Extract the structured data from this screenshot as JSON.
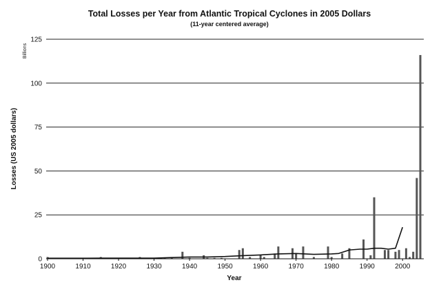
{
  "chart_data": {
    "type": "bar",
    "title": "Total Losses per Year from Atlantic Tropical Cyclones in 2005 Dollars",
    "subtitle": "(11-year centered average)",
    "xlabel": "Year",
    "ylabel": "Losses (US 2005 dollars)",
    "y_unit_label": "Billions",
    "xlim": [
      1900,
      2005
    ],
    "ylim": [
      0,
      125
    ],
    "x_ticks": [
      "1900",
      "1910",
      "1920",
      "1930",
      "1940",
      "1950",
      "1960",
      "1970",
      "1980",
      "1990",
      "2000"
    ],
    "y_ticks": [
      "0",
      "25",
      "50",
      "75",
      "100",
      "125"
    ],
    "grid": "horizontal",
    "bar_color": "#555555",
    "line_color": "#111111",
    "bars": {
      "x": [
        1900,
        1906,
        1909,
        1915,
        1919,
        1926,
        1928,
        1932,
        1933,
        1935,
        1938,
        1940,
        1944,
        1945,
        1947,
        1949,
        1954,
        1955,
        1957,
        1960,
        1961,
        1964,
        1965,
        1969,
        1970,
        1972,
        1975,
        1979,
        1980,
        1983,
        1985,
        1989,
        1991,
        1992,
        1995,
        1996,
        1998,
        1999,
        2001,
        2002,
        2003,
        2004,
        2005
      ],
      "values": [
        1,
        0.5,
        0.5,
        1,
        0.5,
        1,
        0.5,
        0.5,
        0.5,
        0.5,
        4,
        0.5,
        2,
        0.5,
        0.5,
        0.5,
        5,
        6,
        1,
        2,
        1,
        3,
        7,
        6,
        3,
        7,
        1,
        7,
        1,
        3,
        6,
        11,
        2,
        35,
        5,
        5,
        4,
        5,
        6,
        1,
        4,
        46,
        116
      ]
    },
    "series": [
      {
        "type": "line",
        "x": [
          1900,
          1905,
          1910,
          1915,
          1920,
          1925,
          1930,
          1935,
          1940,
          1945,
          1950,
          1955,
          1960,
          1965,
          1970,
          1975,
          1980,
          1982,
          1985,
          1988,
          1990,
          1992,
          1994,
          1996,
          1998,
          2000
        ],
        "values": [
          0.3,
          0.3,
          0.3,
          0.4,
          0.4,
          0.4,
          0.4,
          0.7,
          1,
          1,
          1.3,
          1.8,
          2.2,
          2.8,
          3,
          2.5,
          2.8,
          3,
          5,
          5.5,
          5.5,
          6,
          6,
          5.5,
          6,
          18
        ]
      }
    ]
  }
}
